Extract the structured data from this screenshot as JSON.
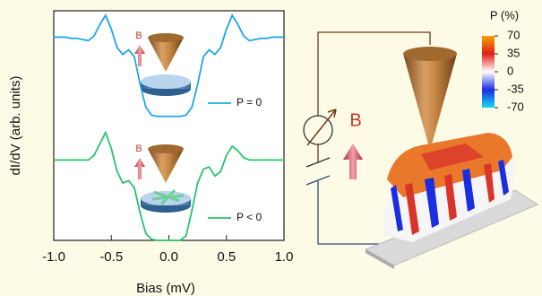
{
  "chart_data": {
    "type": "line",
    "xlabel": "Bias (mV)",
    "ylabel": "dI/dV (arb. units)",
    "x": [
      -1.0,
      -0.95,
      -0.9,
      -0.85,
      -0.8,
      -0.75,
      -0.7,
      -0.65,
      -0.6,
      -0.55,
      -0.5,
      -0.45,
      -0.4,
      -0.35,
      -0.3,
      -0.25,
      -0.2,
      -0.15,
      -0.1,
      -0.05,
      0,
      0.05,
      0.1,
      0.15,
      0.2,
      0.25,
      0.3,
      0.35,
      0.4,
      0.45,
      0.5,
      0.55,
      0.6,
      0.65,
      0.7,
      0.75,
      0.8,
      0.85,
      0.9,
      0.95,
      1.0
    ],
    "series": [
      {
        "name": "P = 0",
        "color": "#1ea7e8",
        "values": [
          8.85,
          8.85,
          8.85,
          8.8,
          8.8,
          8.75,
          8.7,
          8.9,
          9.4,
          9.8,
          9.2,
          8.4,
          8.1,
          8.3,
          8.0,
          6.8,
          5.8,
          5.45,
          5.4,
          5.4,
          5.4,
          5.4,
          5.4,
          5.45,
          5.8,
          6.8,
          8.0,
          8.3,
          8.1,
          8.4,
          9.2,
          9.8,
          9.4,
          8.9,
          8.7,
          8.75,
          8.8,
          8.8,
          8.85,
          8.85,
          8.85
        ]
      },
      {
        "name": "P < 0",
        "color": "#27c46a",
        "values": [
          3.5,
          3.5,
          3.5,
          3.5,
          3.5,
          3.5,
          3.5,
          3.7,
          4.2,
          4.7,
          4.0,
          3.0,
          2.5,
          2.6,
          2.3,
          1.2,
          0.3,
          0.05,
          0,
          0,
          0,
          0,
          0,
          0.2,
          1.3,
          2.5,
          3.1,
          3.2,
          2.8,
          3.0,
          3.7,
          4.1,
          3.9,
          3.6,
          3.5,
          3.5,
          3.5,
          3.5,
          3.5,
          3.5,
          3.5
        ]
      }
    ],
    "xlim": [
      -1.0,
      1.0
    ],
    "xticks": [
      {
        "value": -1.0,
        "label": "-1.0"
      },
      {
        "value": -0.5,
        "label": "-0.5"
      },
      {
        "value": 0,
        "label": "0.0"
      },
      {
        "value": 0.5,
        "label": "0.5"
      },
      {
        "value": 1.0,
        "label": "1.0"
      }
    ],
    "ylim": [
      0,
      10
    ],
    "annotations": [
      "B",
      "B",
      "B"
    ],
    "colorbar": {
      "title": "P (%)",
      "lim": [
        -70,
        70
      ],
      "ticks": [
        70,
        35,
        0,
        -35,
        -70
      ]
    }
  }
}
